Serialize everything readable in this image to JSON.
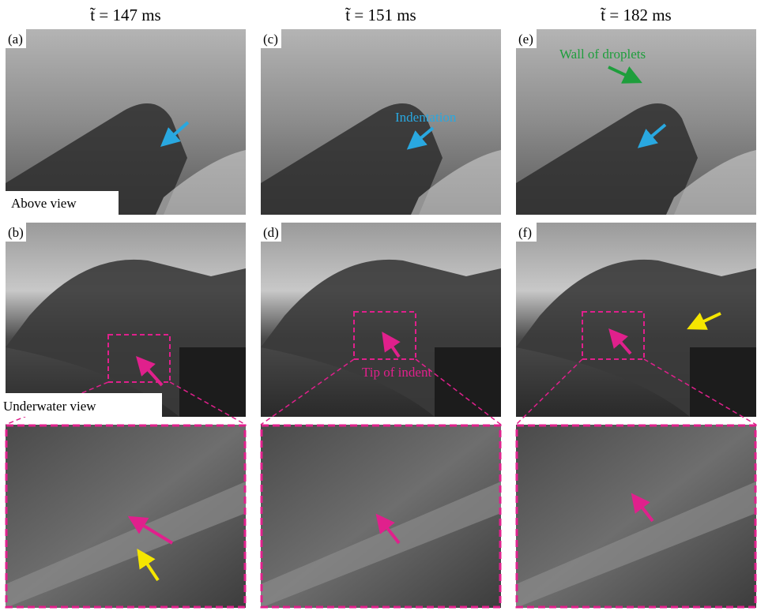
{
  "columns": [
    {
      "time": "t̃ = 147 ms",
      "above_label": "(a)",
      "under_label": "(b)"
    },
    {
      "time": "t̃ = 151 ms",
      "above_label": "(c)",
      "under_label": "(d)"
    },
    {
      "time": "t̃ = 182 ms",
      "above_label": "(e)",
      "under_label": "(f)"
    }
  ],
  "annotations": {
    "above_view": "Above view",
    "underwater_view": "Underwater view",
    "indentation": "Indentation",
    "wall_of_droplets": "Wall of droplets",
    "tip_of_indent": "Tip of indent"
  }
}
